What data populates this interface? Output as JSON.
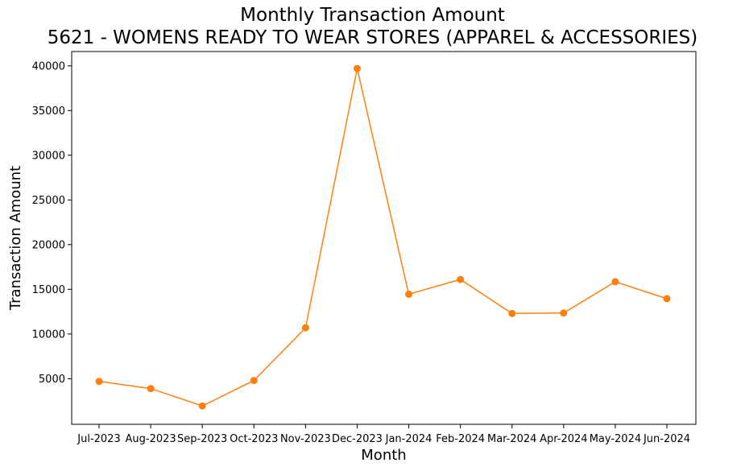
{
  "chart_data": {
    "type": "line",
    "title": [
      "Monthly Transaction Amount",
      "5621 - WOMENS READY TO WEAR STORES (APPAREL & ACCESSORIES)"
    ],
    "xlabel": "Month",
    "ylabel": "Transaction Amount",
    "categories": [
      "Jul-2023",
      "Aug-2023",
      "Sep-2023",
      "Oct-2023",
      "Nov-2023",
      "Dec-2023",
      "Jan-2024",
      "Feb-2024",
      "Mar-2024",
      "Apr-2024",
      "May-2024",
      "Jun-2024"
    ],
    "series": [
      {
        "values": [
          4700,
          3900,
          1950,
          4800,
          10700,
          39700,
          14450,
          16100,
          12300,
          12350,
          15850,
          13950
        ],
        "color": "#ff7f0e",
        "marker": "circle"
      }
    ],
    "ylim": [
      -100,
      41600
    ],
    "yticks": [
      5000,
      10000,
      15000,
      20000,
      25000,
      30000,
      35000,
      40000
    ],
    "grid": false,
    "legend": "none"
  }
}
